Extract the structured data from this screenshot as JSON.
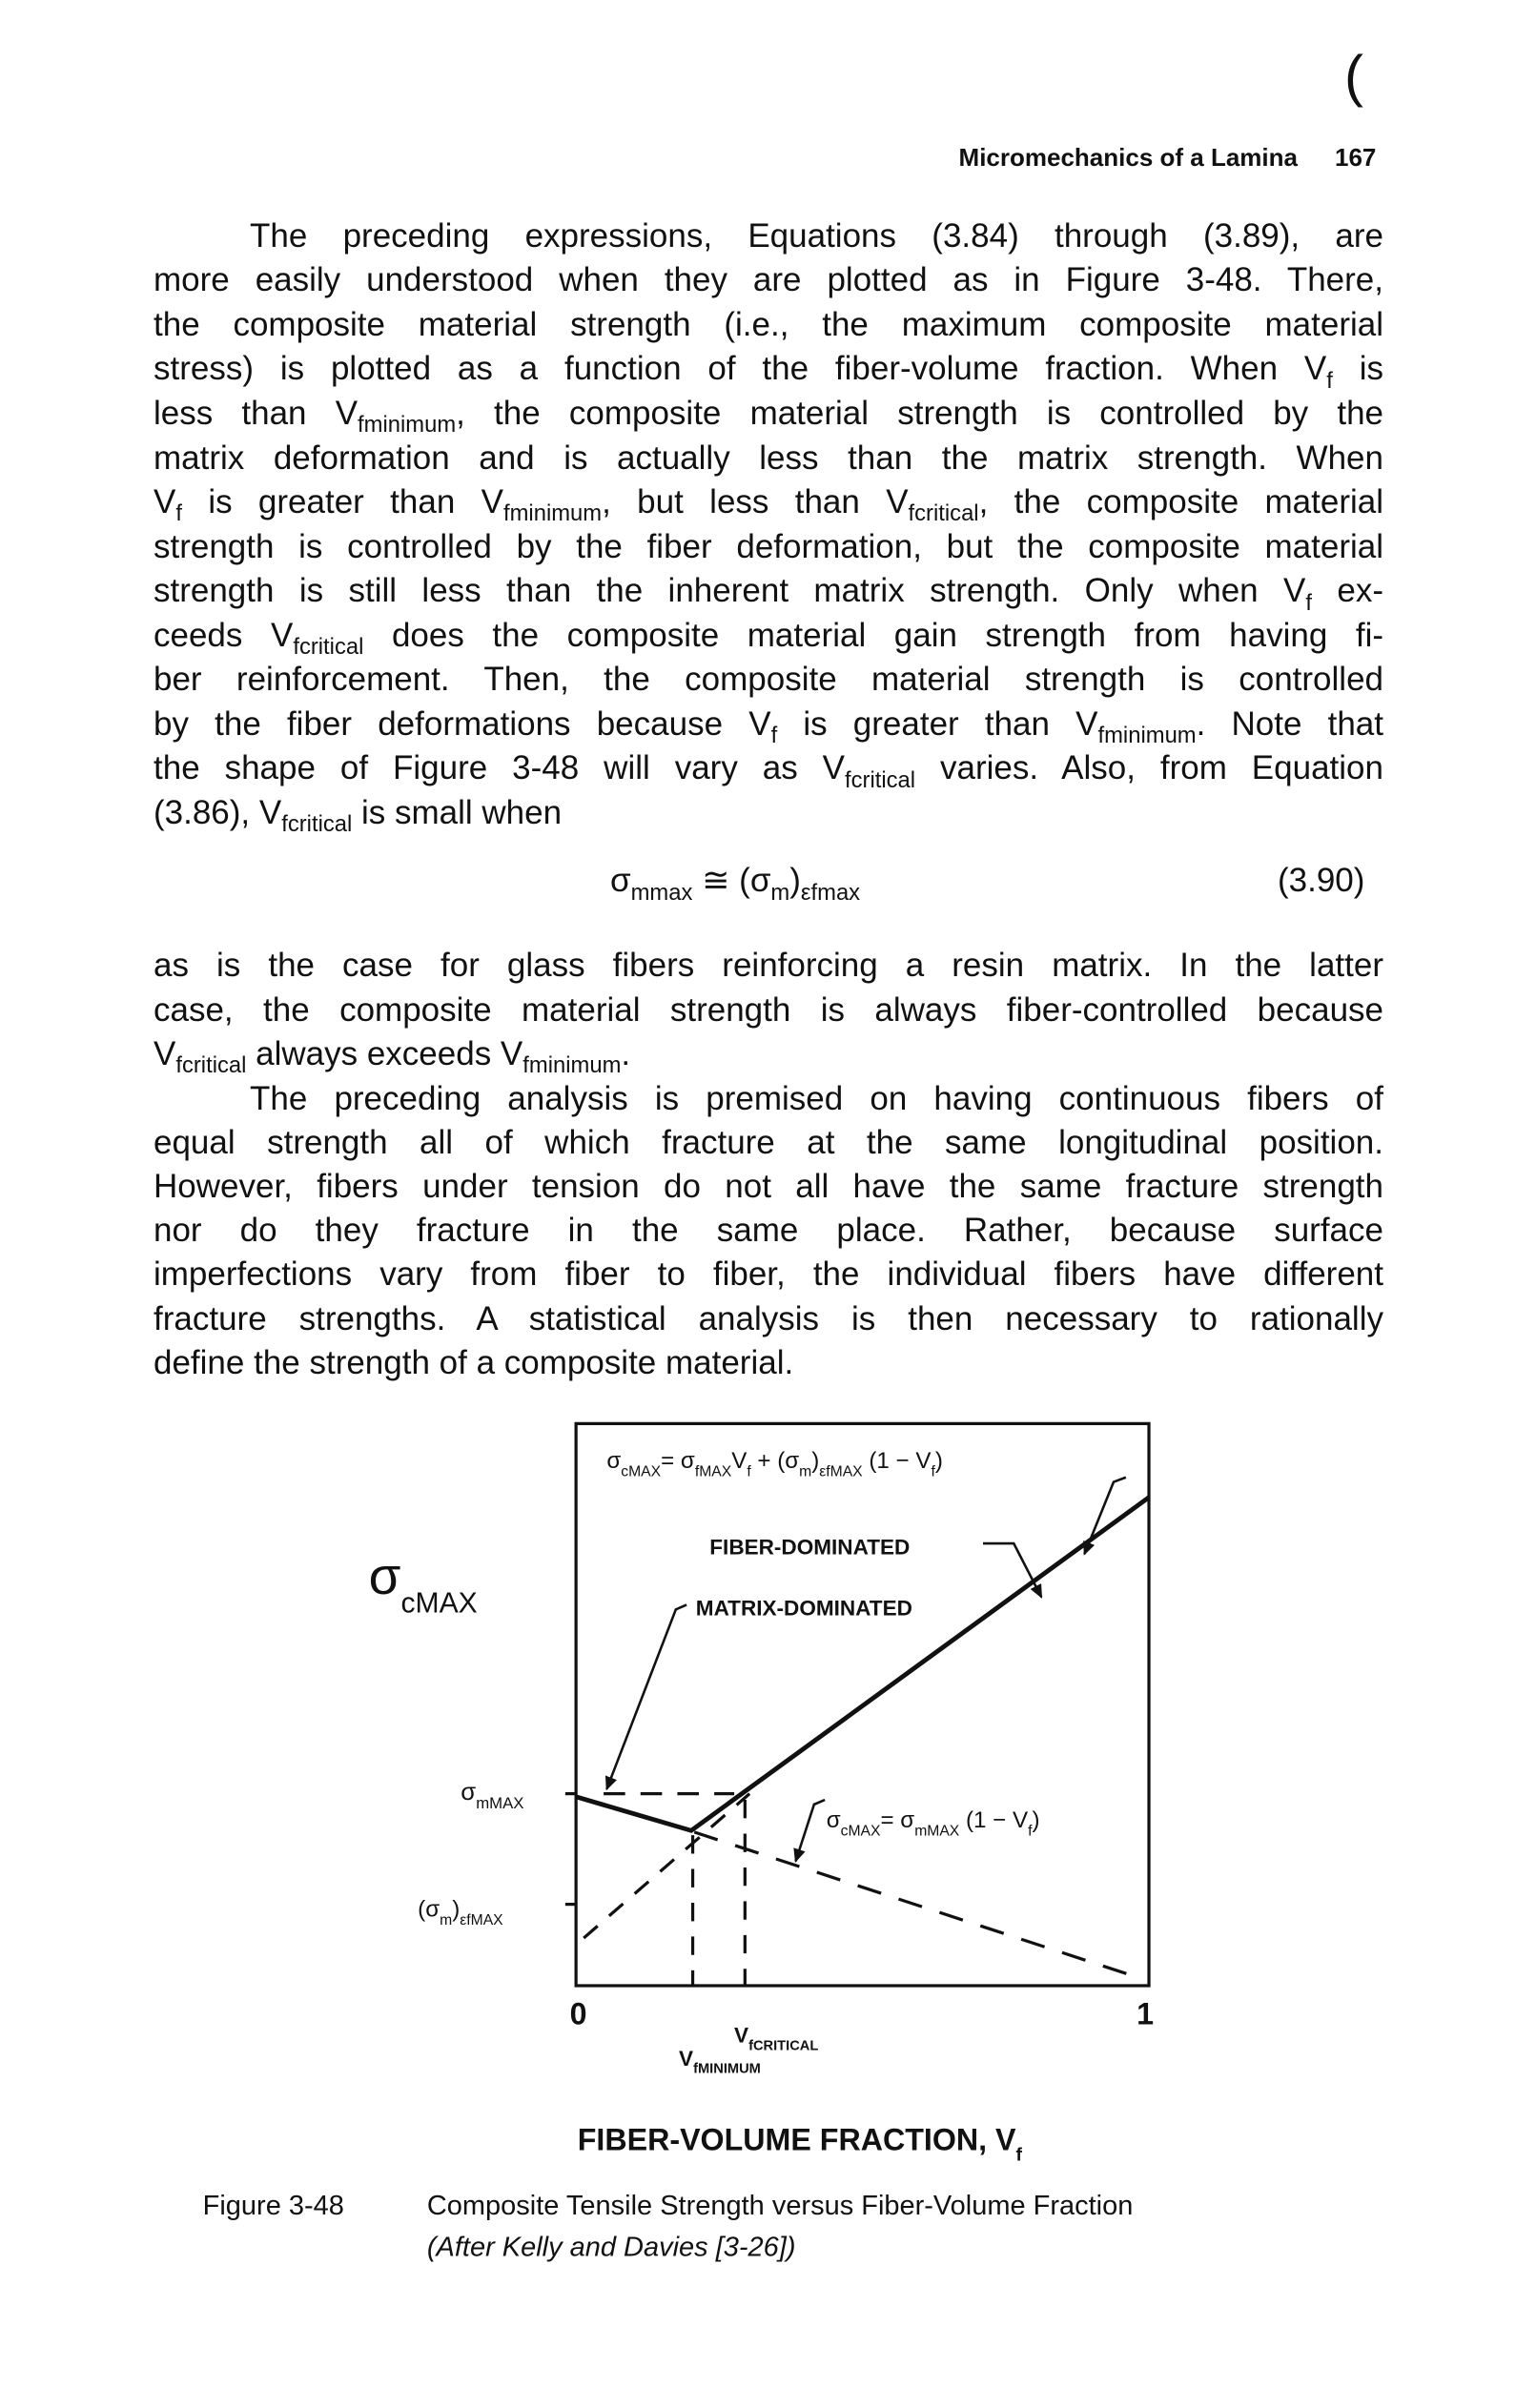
{
  "header": {
    "mark": "(",
    "running_head": "Micromechanics of a Lamina",
    "page_number": "167"
  },
  "body": {
    "paragraph_1": [
      [
        "The preceding expressions, Equations (3.84) through (3.89), are"
      ],
      [
        "more easily understood when they are plotted as in Figure 3-48. There,"
      ],
      [
        "the composite material strength (i.e., the maximum composite material"
      ],
      [
        "stress) is plotted as a function of the fiber-volume fraction. When V",
        "f",
        " is"
      ],
      [
        "less than V",
        "fminimum",
        ", the composite material strength is controlled by the"
      ],
      [
        "matrix deformation and is actually less than the matrix strength. When"
      ],
      [
        "V",
        "f",
        " is greater than V",
        "fminimum",
        ", but less than V",
        "fcritical",
        ", the composite material"
      ],
      [
        "strength is controlled by the fiber deformation, but the composite material"
      ],
      [
        "strength is still less than the inherent matrix strength. Only when V",
        "f",
        " ex-"
      ],
      [
        "ceeds V",
        "fcritical",
        " does the composite material gain strength from having fi-"
      ],
      [
        "ber reinforcement. Then, the composite material strength is controlled"
      ],
      [
        "by the fiber deformations because V",
        "f",
        " is greater than V",
        "fminimum",
        ". Note that"
      ],
      [
        "the shape of Figure 3-48 will vary as V",
        "fcritical",
        " varies. Also, from Equation"
      ],
      [
        "(3.86), V",
        "fcritical",
        " is small when"
      ]
    ],
    "equation": {
      "formula": [
        "σ",
        "mmax",
        " ≅ (σ",
        "m",
        ")",
        "εfmax"
      ],
      "number": "(3.90)"
    },
    "paragraph_2": [
      [
        "as is the case for glass fibers reinforcing a resin matrix. In the latter"
      ],
      [
        "case, the composite material strength is always fiber-controlled because"
      ],
      [
        "V",
        "fcritical",
        " always exceeds V",
        "fminimum",
        "."
      ]
    ],
    "paragraph_3": [
      [
        "The preceding analysis is premised on having continuous fibers of"
      ],
      [
        "equal strength all of which fracture at the same longitudinal position."
      ],
      [
        "However, fibers under tension do not all have the same fracture strength"
      ],
      [
        "nor do they fracture in the same place.  Rather, because surface"
      ],
      [
        "imperfections vary from fiber to fiber, the individual fibers have different"
      ],
      [
        "fracture strengths.  A statistical analysis is then necessary to rationally"
      ],
      [
        "define the strength of a composite material."
      ]
    ]
  },
  "figure": {
    "top_equation": [
      "σ",
      "cMAX",
      "= σ",
      "fMAX",
      "V",
      "f",
      " + (σ",
      "m",
      ")",
      "εfMAX",
      " (1 − V",
      "f",
      ")"
    ],
    "fiber_label": "FIBER-DOMINATED",
    "matrix_label": "MATRIX-DOMINATED",
    "y_axis_label": [
      "σ",
      "cMAX"
    ],
    "y_tick_upper": [
      "σ",
      "mMAX"
    ],
    "y_tick_lower": [
      "(σ",
      "m",
      ")",
      "εfMAX"
    ],
    "right_equation": [
      "σ",
      "cMAX",
      "= σ",
      "mMAX",
      " (1 − V",
      "f",
      ")"
    ],
    "x_start": "0",
    "x_end": "1",
    "v_critical": [
      "V",
      "fCRITICAL"
    ],
    "v_minimum": [
      "V",
      "fMINIMUM"
    ],
    "x_axis_title": [
      "FIBER-VOLUME FRACTION, V",
      "f"
    ]
  },
  "caption": {
    "label": "Figure 3-48",
    "title": "Composite Tensile Strength versus Fiber-Volume Fraction",
    "source": "(After Kelly and Davies [3-26])"
  }
}
